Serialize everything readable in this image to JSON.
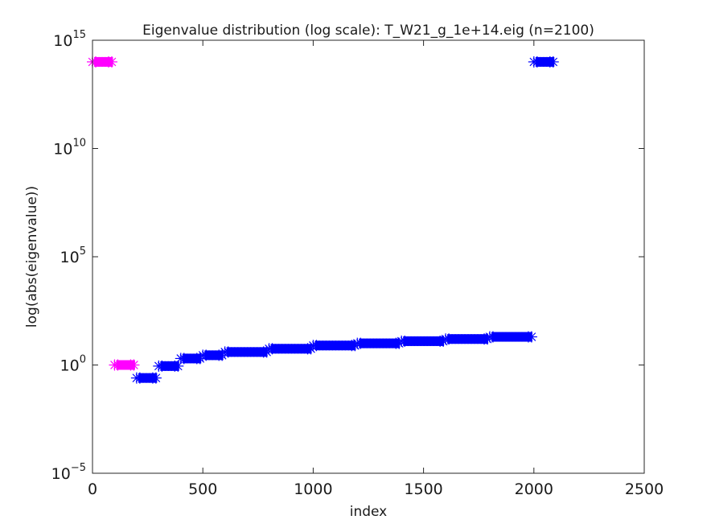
{
  "chart_data": {
    "type": "scatter",
    "title": "Eigenvalue distribution (log scale): T_W21_g_1e+14.eig (n=2100)",
    "xlabel": "index",
    "ylabel": "log(abs(eigenvalue))",
    "xlim": [
      0,
      2500
    ],
    "ylim_log10": [
      -5,
      15
    ],
    "y_scale": "log",
    "grid": false,
    "legend": "none",
    "x_ticks": [
      {
        "value": 0,
        "label": "0"
      },
      {
        "value": 500,
        "label": "500"
      },
      {
        "value": 1000,
        "label": "1000"
      },
      {
        "value": 1500,
        "label": "1500"
      },
      {
        "value": 2000,
        "label": "2000"
      },
      {
        "value": 2500,
        "label": "2500"
      }
    ],
    "y_ticks": [
      {
        "exp": -5,
        "base": "10",
        "sup": "−5"
      },
      {
        "exp": 0,
        "base": "10",
        "sup": "0"
      },
      {
        "exp": 5,
        "base": "10",
        "sup": "5"
      },
      {
        "exp": 10,
        "base": "10",
        "sup": "10"
      },
      {
        "exp": 15,
        "base": "10",
        "sup": "15"
      }
    ],
    "marker": "asterisk",
    "series": [
      {
        "color": "#ff00ff",
        "points": [
          {
            "x0": 0,
            "x1": 100,
            "log10_y": 14
          },
          {
            "x0": 100,
            "x1": 200,
            "log10_y": 0
          }
        ]
      },
      {
        "color": "#0000ff",
        "points": [
          {
            "x0": 200,
            "x1": 300,
            "log10_y": -0.6
          },
          {
            "x0": 300,
            "x1": 400,
            "log10_y": -0.05
          },
          {
            "x0": 400,
            "x1": 500,
            "log10_y": 0.3
          },
          {
            "x0": 500,
            "x1": 600,
            "log10_y": 0.45
          },
          {
            "x0": 600,
            "x1": 800,
            "log10_y": 0.6
          },
          {
            "x0": 800,
            "x1": 1000,
            "log10_y": 0.75
          },
          {
            "x0": 1000,
            "x1": 1200,
            "log10_y": 0.9
          },
          {
            "x0": 1200,
            "x1": 1400,
            "log10_y": 1.0
          },
          {
            "x0": 1400,
            "x1": 1600,
            "log10_y": 1.1
          },
          {
            "x0": 1600,
            "x1": 1800,
            "log10_y": 1.2
          },
          {
            "x0": 1800,
            "x1": 2000,
            "log10_y": 1.3
          },
          {
            "x0": 2000,
            "x1": 2100,
            "log10_y": 14
          }
        ]
      }
    ]
  },
  "colors": {
    "axes": "#262626",
    "background": "#ffffff"
  }
}
